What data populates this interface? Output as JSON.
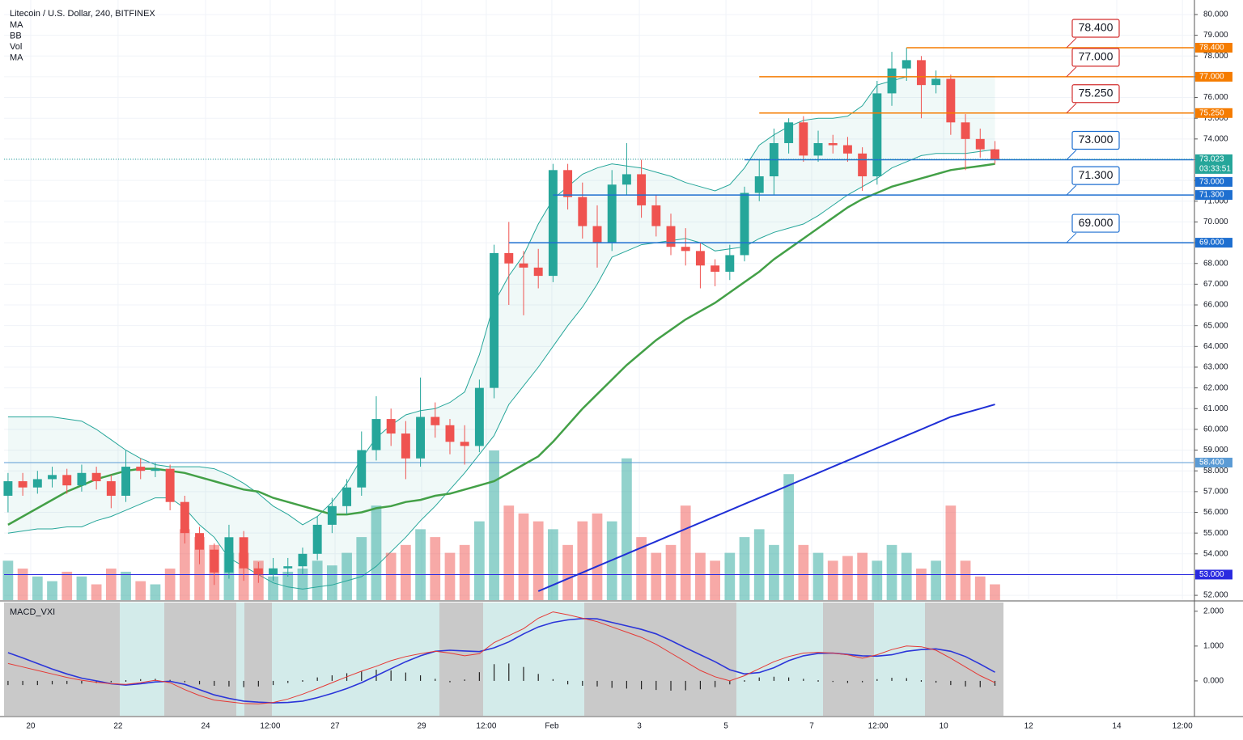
{
  "chart_data": [
    {
      "type": "candlestick",
      "title": "Litecoin / U.S. Dollar, 240, BITFINEX",
      "indicators": [
        "MA",
        "BB",
        "Vol",
        "MA"
      ],
      "up_color": "#26a69a",
      "down_color": "#ef5350",
      "xlim": [
        -0.27,
        80.49
      ],
      "xticks": [
        {
          "value": 1.54,
          "label": "20"
        },
        {
          "value": 7.47,
          "label": "22"
        },
        {
          "value": 13.41,
          "label": "24"
        },
        {
          "value": 17.8,
          "label": "12:00"
        },
        {
          "value": 22.2,
          "label": "27"
        },
        {
          "value": 28.08,
          "label": "29"
        },
        {
          "value": 32.47,
          "label": "12:00"
        },
        {
          "value": 36.92,
          "label": "Feb"
        },
        {
          "value": 42.86,
          "label": "3"
        },
        {
          "value": 48.74,
          "label": "5"
        },
        {
          "value": 54.56,
          "label": "7"
        },
        {
          "value": 59.07,
          "label": "12:00"
        },
        {
          "value": 63.52,
          "label": "10"
        },
        {
          "value": 69.29,
          "label": "12"
        },
        {
          "value": 75.27,
          "label": "14"
        },
        {
          "value": 79.73,
          "label": "12:00"
        }
      ],
      "ylim": [
        51.77,
        80.7
      ],
      "yticks": [
        {
          "value": 52,
          "label": "52.000"
        },
        {
          "value": 53,
          "label": "53.000"
        },
        {
          "value": 54,
          "label": "54.000"
        },
        {
          "value": 55,
          "label": "55.000"
        },
        {
          "value": 56,
          "label": "56.000"
        },
        {
          "value": 57,
          "label": "57.000"
        },
        {
          "value": 58,
          "label": "58.000"
        },
        {
          "value": 59,
          "label": "59.000"
        },
        {
          "value": 60,
          "label": "60.000"
        },
        {
          "value": 61,
          "label": "61.000"
        },
        {
          "value": 62,
          "label": "62.000"
        },
        {
          "value": 63,
          "label": "63.000"
        },
        {
          "value": 64,
          "label": "64.000"
        },
        {
          "value": 65,
          "label": "65.000"
        },
        {
          "value": 66,
          "label": "66.000"
        },
        {
          "value": 67,
          "label": "67.000"
        },
        {
          "value": 68,
          "label": "68.000"
        },
        {
          "value": 69,
          "label": "69.000"
        },
        {
          "value": 70,
          "label": "70.000"
        },
        {
          "value": 71,
          "label": "71.000"
        },
        {
          "value": 72,
          "label": "72.000"
        },
        {
          "value": 73,
          "label": "73.000"
        },
        {
          "value": 74,
          "label": "74.000"
        },
        {
          "value": 75,
          "label": "75.000"
        },
        {
          "value": 76,
          "label": "76.000"
        },
        {
          "value": 77,
          "label": "77.000"
        },
        {
          "value": 78,
          "label": "78.000"
        },
        {
          "value": 79,
          "label": "79.000"
        },
        {
          "value": 80,
          "label": "80.000"
        }
      ],
      "grid": true,
      "open": [
        56.8,
        57.5,
        57.2,
        57.6,
        57.8,
        57.3,
        57.9,
        57.5,
        56.8,
        58.2,
        58.0,
        58.1,
        56.5,
        55.0,
        54.2,
        53.1,
        54.8,
        53.3,
        53.0,
        53.3,
        53.4,
        54.0,
        55.4,
        56.3,
        57.2,
        59.0,
        60.5,
        59.8,
        58.6,
        60.6,
        60.2,
        59.4,
        59.2,
        62.0,
        68.5,
        68.0,
        67.8,
        67.4,
        72.5,
        71.2,
        69.8,
        69.0,
        71.8,
        72.3,
        70.8,
        69.8,
        68.8,
        68.6,
        67.9,
        67.6,
        68.4,
        71.4,
        72.2,
        73.8,
        74.8,
        73.2,
        73.8,
        73.7,
        73.3,
        72.2,
        76.2,
        77.4,
        77.8,
        76.6,
        76.9,
        74.8,
        74.0,
        73.5
      ],
      "high": [
        57.9,
        57.9,
        58.0,
        58.2,
        58.1,
        58.3,
        58.2,
        57.8,
        59.0,
        58.6,
        58.4,
        58.3,
        56.8,
        55.3,
        54.5,
        55.4,
        55.1,
        53.6,
        53.8,
        53.8,
        54.3,
        55.8,
        56.7,
        57.6,
        59.9,
        61.6,
        61.0,
        60.4,
        62.5,
        61.3,
        60.5,
        60.2,
        62.4,
        68.9,
        70.0,
        68.6,
        68.7,
        72.8,
        72.8,
        71.9,
        70.8,
        72.5,
        73.8,
        73.0,
        71.3,
        70.4,
        69.7,
        69.0,
        68.2,
        68.9,
        71.7,
        73.0,
        74.5,
        75.0,
        75.1,
        74.4,
        74.2,
        74.1,
        73.6,
        76.8,
        78.2,
        78.4,
        78.0,
        77.3,
        77.1,
        75.2,
        74.5,
        73.9
      ],
      "low": [
        56.0,
        56.8,
        56.9,
        57.2,
        56.9,
        57.0,
        57.1,
        56.2,
        56.5,
        57.6,
        57.7,
        56.1,
        54.5,
        53.5,
        52.5,
        52.8,
        52.7,
        52.6,
        52.7,
        52.9,
        53.0,
        53.7,
        55.0,
        55.9,
        56.8,
        58.5,
        59.2,
        57.6,
        58.2,
        59.6,
        58.8,
        58.3,
        58.9,
        61.5,
        66.0,
        65.5,
        66.8,
        67.1,
        70.6,
        69.2,
        67.8,
        68.6,
        71.3,
        70.2,
        69.3,
        68.4,
        67.9,
        66.8,
        66.9,
        67.2,
        68.1,
        71.0,
        71.3,
        73.3,
        72.9,
        72.9,
        73.3,
        72.9,
        71.5,
        71.8,
        75.6,
        76.8,
        75.0,
        76.2,
        74.2,
        72.5,
        73.1,
        72.8
      ],
      "close": [
        57.5,
        57.2,
        57.6,
        57.8,
        57.3,
        57.9,
        57.5,
        56.8,
        58.2,
        58.0,
        58.1,
        56.5,
        55.0,
        54.2,
        53.1,
        54.8,
        53.3,
        53.0,
        53.3,
        53.4,
        54.0,
        55.4,
        56.3,
        57.2,
        59.0,
        60.5,
        59.8,
        58.6,
        60.6,
        60.2,
        59.4,
        59.2,
        62.0,
        68.5,
        68.0,
        67.8,
        67.4,
        72.5,
        71.2,
        69.8,
        69.0,
        71.8,
        72.3,
        70.8,
        69.8,
        68.8,
        68.6,
        67.9,
        67.6,
        68.4,
        71.4,
        72.2,
        73.8,
        74.8,
        73.2,
        73.8,
        73.7,
        73.3,
        72.2,
        76.2,
        77.4,
        77.8,
        76.6,
        76.9,
        74.8,
        74.0,
        73.5,
        73.023
      ],
      "volume": [
        25,
        20,
        15,
        12,
        18,
        15,
        10,
        20,
        18,
        12,
        10,
        20,
        45,
        40,
        35,
        30,
        30,
        25,
        15,
        18,
        20,
        25,
        22,
        30,
        40,
        60,
        30,
        35,
        45,
        40,
        30,
        35,
        50,
        95,
        60,
        55,
        50,
        45,
        35,
        50,
        55,
        50,
        90,
        40,
        30,
        35,
        60,
        30,
        25,
        30,
        40,
        45,
        35,
        80,
        35,
        30,
        25,
        28,
        30,
        25,
        35,
        30,
        20,
        25,
        60,
        25,
        15,
        10
      ],
      "bands": {
        "color": "#26a69a",
        "upper": [
          60.6,
          60.6,
          60.6,
          60.6,
          60.5,
          60.4,
          60.0,
          59.5,
          59.0,
          58.6,
          58.3,
          58.2,
          58.2,
          58.2,
          58.1,
          57.8,
          57.4,
          56.9,
          56.3,
          55.9,
          55.4,
          55.8,
          56.5,
          57.4,
          58.6,
          59.6,
          60.2,
          60.7,
          60.9,
          61.0,
          61.3,
          61.8,
          63.6,
          66.1,
          67.4,
          68.4,
          69.9,
          71.1,
          71.7,
          72.3,
          72.6,
          72.8,
          72.7,
          72.6,
          72.4,
          72.2,
          71.9,
          71.7,
          71.5,
          71.8,
          72.6,
          73.7,
          74.2,
          74.6,
          74.9,
          75.0,
          75.0,
          75.1,
          75.6,
          76.6,
          76.8,
          77.0,
          77.0,
          77.0,
          77.0,
          77.0,
          77.0,
          77.0
        ],
        "lower": [
          55.0,
          55.1,
          55.2,
          55.2,
          55.3,
          55.3,
          55.6,
          55.8,
          56.1,
          56.4,
          56.7,
          56.7,
          56.2,
          55.4,
          54.8,
          53.8,
          53.4,
          53.0,
          52.6,
          52.4,
          52.3,
          52.4,
          52.5,
          52.7,
          52.9,
          53.4,
          54.1,
          54.8,
          55.6,
          56.3,
          57.1,
          57.9,
          58.8,
          59.7,
          61.2,
          62.1,
          63.0,
          64.0,
          65.0,
          65.9,
          67.0,
          68.3,
          68.6,
          68.9,
          69.0,
          69.1,
          69.2,
          69.0,
          68.6,
          68.7,
          68.8,
          69.2,
          69.5,
          69.7,
          69.9,
          70.3,
          70.8,
          71.3,
          71.7,
          72.1,
          72.6,
          72.9,
          73.2,
          73.3,
          73.3,
          73.3,
          73.4,
          73.5
        ]
      },
      "series": [
        {
          "color": "#43a047",
          "values": [
            55.4,
            55.8,
            56.2,
            56.6,
            57.0,
            57.3,
            57.6,
            57.8,
            58.0,
            58.1,
            58.1,
            58.0,
            57.9,
            57.7,
            57.5,
            57.3,
            57.1,
            57.0,
            56.7,
            56.5,
            56.3,
            56.1,
            55.9,
            55.9,
            56.0,
            56.2,
            56.3,
            56.5,
            56.6,
            56.8,
            56.9,
            57.1,
            57.3,
            57.5,
            57.9,
            58.3,
            58.7,
            59.4,
            60.2,
            61.0,
            61.7,
            62.4,
            63.1,
            63.7,
            64.3,
            64.8,
            65.3,
            65.7,
            66.1,
            66.6,
            67.1,
            67.6,
            68.2,
            68.7,
            69.2,
            69.7,
            70.2,
            70.7,
            71.1,
            71.4,
            71.7,
            71.9,
            72.1,
            72.3,
            72.5,
            72.6,
            72.7,
            72.8
          ]
        },
        {
          "color": "#1f2fd6",
          "values": [
            null,
            null,
            null,
            null,
            null,
            null,
            null,
            null,
            null,
            null,
            null,
            null,
            null,
            null,
            null,
            null,
            null,
            null,
            null,
            null,
            null,
            null,
            null,
            null,
            null,
            null,
            null,
            null,
            null,
            null,
            null,
            null,
            null,
            null,
            null,
            null,
            52.2,
            52.5,
            52.8,
            53.1,
            53.4,
            53.7,
            54.0,
            54.3,
            54.6,
            54.9,
            55.2,
            55.5,
            55.8,
            56.1,
            56.4,
            56.7,
            57.0,
            57.3,
            57.6,
            57.9,
            58.2,
            58.5,
            58.8,
            59.1,
            59.4,
            59.7,
            60.0,
            60.3,
            60.6,
            60.8,
            61.0,
            61.2
          ]
        }
      ],
      "levels": [
        {
          "value": 78.4,
          "label": "78.400",
          "color": "#f57c00",
          "text_color": "#d32f2f",
          "from": 61
        },
        {
          "value": 77.0,
          "label": "77.000",
          "color": "#f57c00",
          "text_color": "#d32f2f",
          "from": 51
        },
        {
          "value": 75.25,
          "label": "75.250",
          "color": "#f57c00",
          "text_color": "#d32f2f",
          "from": 51
        },
        {
          "value": 73.0,
          "label": "73.000",
          "color": "#1e6fd0",
          "text_color": "#1e6fd0",
          "from": 50
        },
        {
          "value": 71.3,
          "label": "71.300",
          "color": "#1e6fd0",
          "text_color": "#1e6fd0",
          "from": 37
        },
        {
          "value": 69.0,
          "label": "69.000",
          "color": "#1e6fd0",
          "text_color": "#1e6fd0",
          "from": 34
        }
      ],
      "hlines": [
        {
          "value": 58.4,
          "label": "58.400",
          "color": "#5b9bd5"
        },
        {
          "value": 53.0,
          "label": "53.000",
          "color": "#2a2ae0"
        }
      ],
      "last_price": 73.023,
      "countdown": "03:33:51"
    },
    {
      "type": "macd",
      "title": "MACD_VXI",
      "ylim": [
        -1,
        2.25
      ],
      "yticks": [
        {
          "value": 0,
          "label": "0.000"
        },
        {
          "value": 1,
          "label": "1.000"
        },
        {
          "value": 2,
          "label": "2.000"
        }
      ],
      "series": [
        {
          "color": "#2b35d9",
          "values": [
            0.81,
            0.66,
            0.5,
            0.34,
            0.2,
            0.08,
            0.0,
            -0.08,
            -0.12,
            -0.08,
            -0.03,
            -0.01,
            -0.1,
            -0.25,
            -0.4,
            -0.5,
            -0.58,
            -0.61,
            -0.63,
            -0.62,
            -0.58,
            -0.48,
            -0.36,
            -0.22,
            -0.05,
            0.15,
            0.35,
            0.55,
            0.72,
            0.85,
            0.88,
            0.86,
            0.84,
            0.95,
            1.12,
            1.35,
            1.55,
            1.68,
            1.75,
            1.79,
            1.78,
            1.68,
            1.58,
            1.48,
            1.35,
            1.16,
            0.95,
            0.75,
            0.55,
            0.32,
            0.2,
            0.24,
            0.38,
            0.58,
            0.72,
            0.79,
            0.8,
            0.76,
            0.72,
            0.71,
            0.75,
            0.85,
            0.9,
            0.92,
            0.85,
            0.7,
            0.48,
            0.25
          ]
        },
        {
          "color": "#e53935",
          "values": [
            0.5,
            0.4,
            0.3,
            0.2,
            0.1,
            0.02,
            -0.04,
            -0.08,
            -0.1,
            -0.05,
            0.02,
            -0.05,
            -0.25,
            -0.42,
            -0.55,
            -0.6,
            -0.65,
            -0.66,
            -0.62,
            -0.52,
            -0.38,
            -0.22,
            -0.05,
            0.12,
            0.28,
            0.42,
            0.58,
            0.7,
            0.78,
            0.85,
            0.8,
            0.72,
            0.78,
            1.1,
            1.3,
            1.5,
            1.8,
            1.98,
            1.9,
            1.8,
            1.7,
            1.55,
            1.4,
            1.25,
            1.05,
            0.8,
            0.55,
            0.3,
            0.12,
            0.0,
            0.15,
            0.35,
            0.55,
            0.7,
            0.8,
            0.82,
            0.8,
            0.75,
            0.65,
            0.75,
            0.9,
            1.0,
            0.98,
            0.88,
            0.65,
            0.4,
            0.15,
            -0.05
          ]
        }
      ],
      "histogram": [
        -0.12,
        -0.12,
        -0.12,
        -0.1,
        -0.09,
        -0.08,
        -0.06,
        -0.04,
        0.02,
        0.05,
        0.06,
        0.03,
        -0.04,
        -0.1,
        -0.14,
        -0.16,
        -0.18,
        -0.16,
        -0.12,
        -0.06,
        0.02,
        0.1,
        0.16,
        0.22,
        0.28,
        0.32,
        0.3,
        0.24,
        0.16,
        0.06,
        -0.04,
        0.04,
        0.25,
        0.48,
        0.5,
        0.4,
        0.2,
        0.05,
        -0.1,
        -0.14,
        -0.16,
        -0.2,
        -0.22,
        -0.24,
        -0.26,
        -0.28,
        -0.27,
        -0.24,
        -0.18,
        -0.1,
        0.02,
        0.1,
        0.12,
        0.1,
        0.06,
        0.02,
        -0.03,
        -0.06,
        -0.04,
        0.05,
        0.09,
        0.08,
        0.02,
        -0.05,
        -0.12,
        -0.16,
        -0.18,
        -0.14
      ]
    }
  ]
}
